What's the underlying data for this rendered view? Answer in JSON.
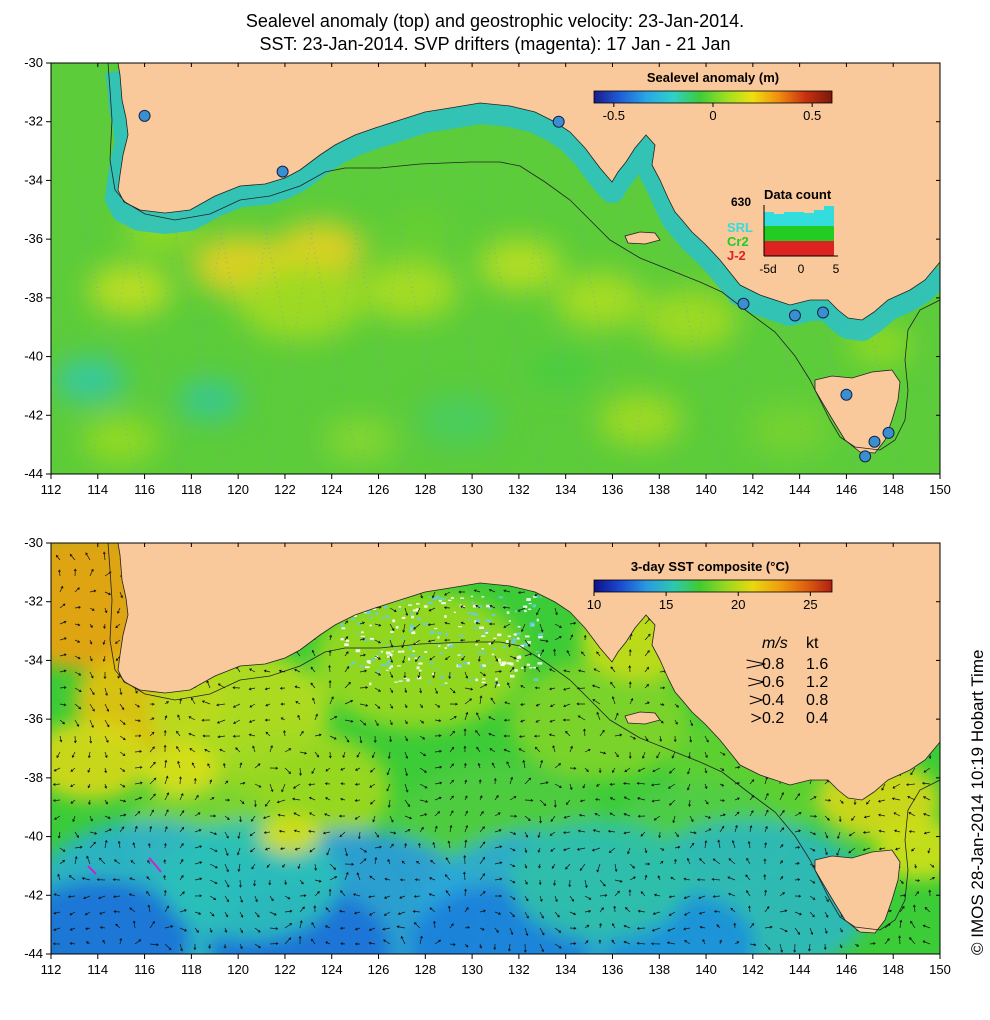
{
  "titles": {
    "line1": "Sealevel anomaly (top) and geostrophic velocity: 23-Jan-2014.",
    "line2": "SST: 23-Jan-2014. SVP drifters (magenta): 17 Jan - 21 Jan"
  },
  "credit": "© IMOS 28-Jan-2014 10:19 Hobart Time",
  "axes": {
    "lon_ticks": [
      "112",
      "114",
      "116",
      "118",
      "120",
      "122",
      "124",
      "126",
      "128",
      "130",
      "132",
      "134",
      "136",
      "138",
      "140",
      "142",
      "144",
      "146",
      "148",
      "150"
    ],
    "lat_ticks": [
      "-30",
      "-32",
      "-34",
      "-36",
      "-38",
      "-40",
      "-42",
      "-44"
    ],
    "lon_range": [
      112,
      150
    ],
    "lat_range": [
      -30,
      -44
    ]
  },
  "top_panel": {
    "colorbar": {
      "title": "Sealevel anomaly (m)",
      "ticks": [
        "-0.5",
        "0",
        "0.5"
      ],
      "range": [
        -0.6,
        0.6
      ]
    },
    "data_count": {
      "title": "Data count",
      "max": "630",
      "series": [
        {
          "name": "SRL",
          "color": "#33dddd"
        },
        {
          "name": "Cr2",
          "color": "#22cc22"
        },
        {
          "name": "J-2",
          "color": "#dd2222"
        }
      ],
      "x_ticks": [
        "-5d",
        "0",
        "5"
      ]
    },
    "tide_gauges": [
      {
        "lon": 116.0,
        "lat": -31.8
      },
      {
        "lon": 121.9,
        "lat": -33.7
      },
      {
        "lon": 133.7,
        "lat": -32.0
      },
      {
        "lon": 141.6,
        "lat": -38.2
      },
      {
        "lon": 143.8,
        "lat": -38.6
      },
      {
        "lon": 145.0,
        "lat": -38.5
      },
      {
        "lon": 146.0,
        "lat": -41.3
      },
      {
        "lon": 147.2,
        "lat": -42.9
      },
      {
        "lon": 147.8,
        "lat": -42.6
      },
      {
        "lon": 146.8,
        "lat": -43.4
      }
    ]
  },
  "bottom_panel": {
    "colorbar": {
      "title": "3-day SST composite (°C)",
      "ticks": [
        "10",
        "15",
        "20",
        "25"
      ],
      "range": [
        10,
        26.5
      ]
    },
    "speed_legend": {
      "header_ms": "m/s",
      "header_kt": "kt",
      "rows": [
        {
          "ms": "0.8",
          "kt": "1.6"
        },
        {
          "ms": "0.6",
          "kt": "1.2"
        },
        {
          "ms": "0.4",
          "kt": "0.8"
        },
        {
          "ms": "0.2",
          "kt": "0.4"
        }
      ]
    }
  },
  "colors": {
    "land": "#f9c89b",
    "sla_cmap": [
      "#1a1a8c",
      "#1f5fd8",
      "#29a8e6",
      "#2fd0c8",
      "#3ccc3c",
      "#9ce020",
      "#f0e010",
      "#f08c10",
      "#c83010",
      "#7a1a0a"
    ],
    "sst_cmap": [
      "#10108a",
      "#1a4ad0",
      "#2a9ae0",
      "#2cc8b0",
      "#40cc30",
      "#9ad820",
      "#e8d810",
      "#f0a010",
      "#e06010",
      "#b02010"
    ]
  }
}
